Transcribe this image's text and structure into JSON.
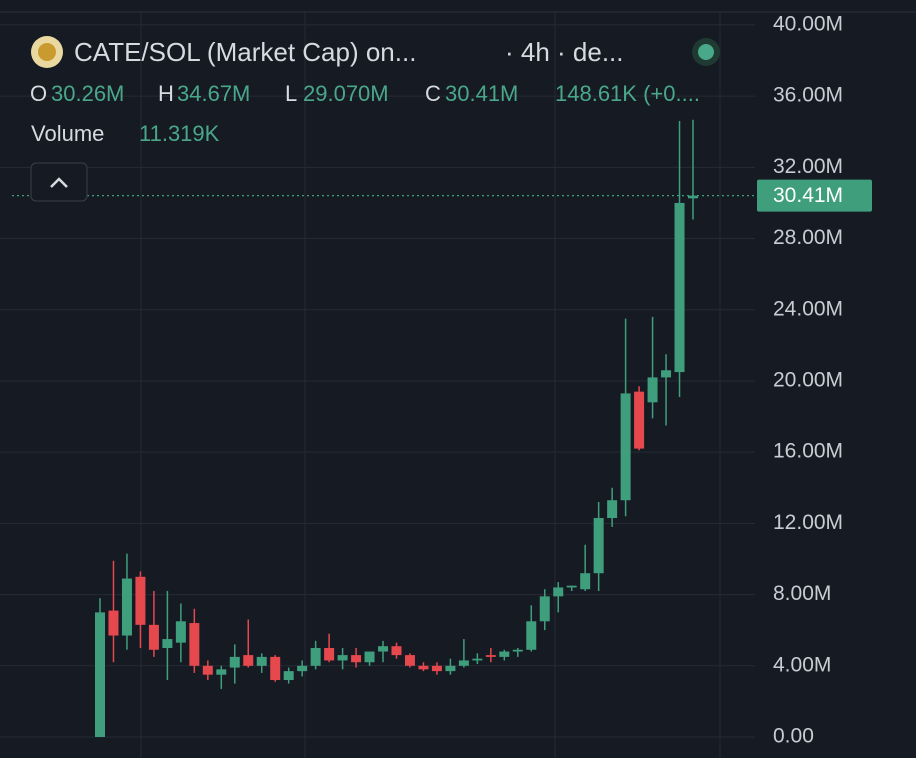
{
  "header": {
    "title": "CATE/SOL (Market Cap) on...",
    "interval": "· 4h · de...",
    "open_label": "O",
    "open": "30.26M",
    "high_label": "H",
    "high": "34.67M",
    "low_label": "L",
    "low": "29.070M",
    "close_label": "C",
    "close": "30.41M",
    "change": "148.61K (+0....",
    "volume_label": "Volume",
    "volume": "11.319K"
  },
  "chart_data": {
    "type": "candlestick",
    "up_color": "#3f9f7d",
    "down_color": "#e5484d",
    "open": [
      0,
      7.1,
      5.7,
      9.0,
      6.3,
      5.0,
      5.3,
      6.4,
      4.0,
      3.5,
      3.9,
      4.6,
      4.0,
      4.5,
      3.2,
      3.7,
      4.0,
      5.0,
      4.3,
      4.6,
      4.2,
      4.8,
      5.1,
      4.6,
      4.0,
      4.0,
      3.7,
      4.0,
      4.3,
      4.6,
      4.5,
      4.8,
      4.9,
      6.5,
      7.9,
      8.4,
      8.3,
      9.2,
      12.3,
      13.3,
      19.4,
      18.8,
      20.2,
      20.5,
      30.26
    ],
    "high": [
      7.8,
      9.9,
      10.3,
      9.3,
      8.2,
      8.2,
      7.5,
      7.2,
      4.3,
      4.0,
      5.2,
      6.6,
      4.7,
      4.6,
      3.9,
      4.3,
      5.4,
      5.8,
      5.0,
      5.0,
      4.8,
      5.4,
      5.3,
      4.7,
      4.2,
      4.2,
      4.4,
      5.5,
      4.7,
      5.0,
      4.9,
      5.0,
      7.4,
      8.3,
      8.7,
      8.5,
      10.8,
      13.2,
      14.0,
      23.5,
      19.7,
      23.6,
      21.5,
      34.6,
      34.67
    ],
    "low": [
      0,
      4.2,
      4.9,
      5.0,
      4.5,
      3.2,
      4.2,
      3.6,
      3.2,
      2.7,
      3.0,
      3.9,
      3.6,
      3.1,
      3.0,
      3.4,
      3.8,
      4.2,
      3.8,
      3.9,
      4.0,
      4.2,
      4.4,
      3.9,
      3.7,
      3.5,
      3.5,
      3.9,
      4.1,
      4.2,
      4.3,
      4.5,
      4.8,
      6.0,
      7.0,
      8.2,
      8.2,
      8.2,
      11.8,
      12.4,
      16.1,
      17.9,
      17.5,
      19.1,
      29.07
    ],
    "close": [
      7.0,
      5.7,
      8.9,
      6.3,
      4.9,
      5.5,
      6.5,
      4.0,
      3.5,
      3.8,
      4.5,
      4.0,
      4.5,
      3.2,
      3.7,
      4.0,
      5.0,
      4.3,
      4.6,
      4.2,
      4.8,
      5.1,
      4.6,
      4.0,
      3.8,
      3.7,
      4.0,
      4.3,
      4.4,
      4.5,
      4.8,
      4.9,
      6.5,
      7.9,
      8.4,
      8.5,
      9.2,
      12.3,
      13.3,
      19.3,
      16.2,
      20.2,
      20.6,
      30.0,
      30.41
    ],
    "last_price": {
      "value": 30.41,
      "label": "30.41M"
    },
    "ylim": [
      -1.18,
      41.4
    ],
    "yticks": [
      {
        "value": 0,
        "label": "0.00"
      },
      {
        "value": 4,
        "label": "4.00M"
      },
      {
        "value": 8,
        "label": "8.00M"
      },
      {
        "value": 12,
        "label": "12.00M"
      },
      {
        "value": 16,
        "label": "16.00M"
      },
      {
        "value": 20,
        "label": "20.00M"
      },
      {
        "value": 24,
        "label": "24.00M"
      },
      {
        "value": 28,
        "label": "28.00M"
      },
      {
        "value": 32,
        "label": "32.00M"
      },
      {
        "value": 36,
        "label": "36.00M"
      },
      {
        "value": 40,
        "label": "40.00M"
      }
    ],
    "grid": true
  }
}
